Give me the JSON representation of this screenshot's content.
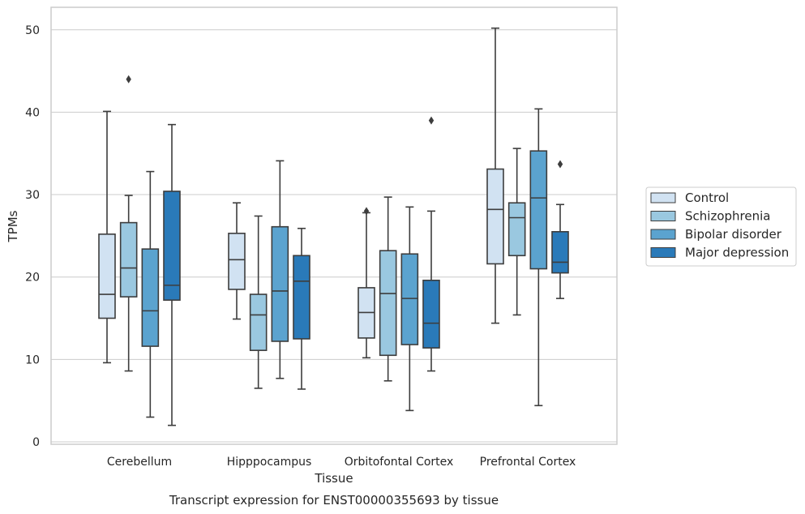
{
  "chart_data": {
    "type": "box",
    "title": "",
    "caption": "Transcript expression for ENST00000355693 by tissue",
    "xlabel": "Tissue",
    "ylabel": "TPMs",
    "ylim": [
      -0.5,
      52.5
    ],
    "yticks": [
      0,
      10,
      20,
      30,
      40,
      50
    ],
    "grid": "horizontal",
    "legend_position": "right",
    "categories": [
      "Cerebellum",
      "Hipppocampus",
      "Orbitofontal Cortex",
      "Prefrontal Cortex"
    ],
    "series": [
      {
        "name": "Control",
        "color": "#d1e2f2",
        "boxes": [
          {
            "whislo": 9.6,
            "q1": 15.0,
            "med": 17.9,
            "q3": 25.2,
            "whishi": 40.1,
            "fliers": []
          },
          {
            "whislo": 14.9,
            "q1": 18.5,
            "med": 22.1,
            "q3": 25.3,
            "whishi": 29.0,
            "fliers": []
          },
          {
            "whislo": 10.2,
            "q1": 12.6,
            "med": 15.7,
            "q3": 18.7,
            "whishi": 27.8,
            "fliers": [
              28.0
            ]
          },
          {
            "whislo": 14.4,
            "q1": 21.6,
            "med": 28.2,
            "q3": 33.1,
            "whishi": 50.2,
            "fliers": []
          }
        ]
      },
      {
        "name": "Schizophrenia",
        "color": "#9ac8e0",
        "boxes": [
          {
            "whislo": 8.6,
            "q1": 17.6,
            "med": 21.1,
            "q3": 26.6,
            "whishi": 29.9,
            "fliers": [
              44.0
            ]
          },
          {
            "whislo": 6.5,
            "q1": 11.1,
            "med": 15.4,
            "q3": 17.9,
            "whishi": 27.4,
            "fliers": []
          },
          {
            "whislo": 7.4,
            "q1": 10.5,
            "med": 18.0,
            "q3": 23.2,
            "whishi": 29.7,
            "fliers": []
          },
          {
            "whislo": 15.4,
            "q1": 22.6,
            "med": 27.2,
            "q3": 29.0,
            "whishi": 35.6,
            "fliers": []
          }
        ]
      },
      {
        "name": "Bipolar disorder",
        "color": "#5ba3cf",
        "boxes": [
          {
            "whislo": 3.0,
            "q1": 11.6,
            "med": 15.9,
            "q3": 23.4,
            "whishi": 32.8,
            "fliers": []
          },
          {
            "whislo": 7.7,
            "q1": 12.2,
            "med": 18.3,
            "q3": 26.1,
            "whishi": 34.1,
            "fliers": []
          },
          {
            "whislo": 3.8,
            "q1": 11.8,
            "med": 17.4,
            "q3": 22.8,
            "whishi": 28.5,
            "fliers": []
          },
          {
            "whislo": 4.4,
            "q1": 21.0,
            "med": 29.6,
            "q3": 35.3,
            "whishi": 40.4,
            "fliers": []
          }
        ]
      },
      {
        "name": "Major depression",
        "color": "#2a7ab9",
        "boxes": [
          {
            "whislo": 2.0,
            "q1": 17.2,
            "med": 19.0,
            "q3": 30.4,
            "whishi": 38.5,
            "fliers": []
          },
          {
            "whislo": 6.4,
            "q1": 12.5,
            "med": 19.5,
            "q3": 22.6,
            "whishi": 25.9,
            "fliers": []
          },
          {
            "whislo": 8.6,
            "q1": 11.4,
            "med": 14.4,
            "q3": 19.6,
            "whishi": 28.0,
            "fliers": [
              39.0
            ]
          },
          {
            "whislo": 17.4,
            "q1": 20.5,
            "med": 21.8,
            "q3": 25.5,
            "whishi": 28.8,
            "fliers": [
              33.7
            ]
          }
        ]
      }
    ]
  }
}
